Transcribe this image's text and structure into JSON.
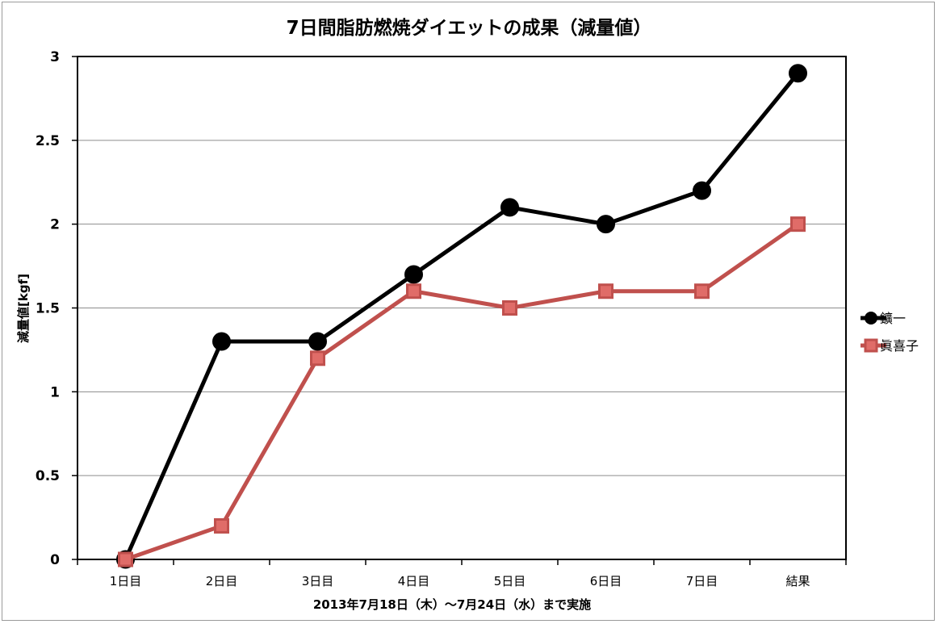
{
  "chart_data": {
    "type": "line",
    "title": "7日間脂肪燃焼ダイエットの成果（減量値）",
    "xlabel": "2013年7月18日（木）〜7月24日（水）まで実施",
    "ylabel": "減量値[kgf]",
    "categories": [
      "1日目",
      "2日目",
      "3日目",
      "4日目",
      "5日目",
      "6日目",
      "7日目",
      "結果"
    ],
    "ylim": [
      0,
      3
    ],
    "yticks": [
      "0",
      "0.5",
      "1",
      "1.5",
      "2",
      "2.5",
      "3"
    ],
    "grid": true,
    "legend_position": "right",
    "series": [
      {
        "name": "鑛一",
        "values": [
          0,
          1.3,
          1.3,
          1.7,
          2.1,
          2.0,
          2.2,
          2.9
        ],
        "color": "#000000",
        "marker": "circle"
      },
      {
        "name": "眞喜子",
        "values": [
          0,
          0.2,
          1.2,
          1.6,
          1.5,
          1.6,
          1.6,
          2.0
        ],
        "color": "#c0504d",
        "marker": "square"
      }
    ]
  }
}
